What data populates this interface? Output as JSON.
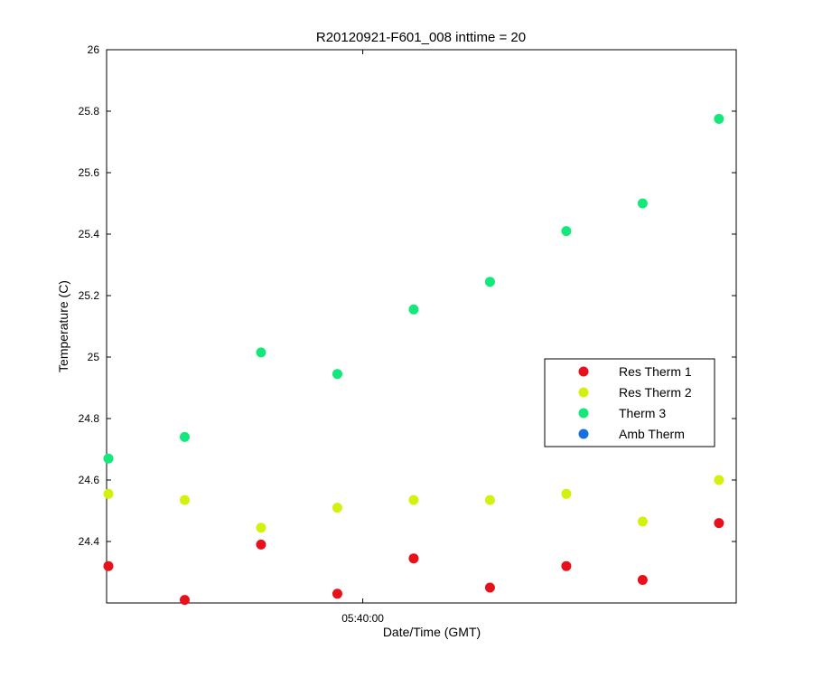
{
  "chart_data": {
    "type": "scatter",
    "title": "R20120921-F601_008 inttime = 20",
    "xlabel": "Date/Time (GMT)",
    "ylabel": "Temperature (C)",
    "x_tick_labels": [
      "05:40:00"
    ],
    "x_tick_index": 3.333,
    "xlim": [
      0,
      8.25
    ],
    "ylim": [
      24.2,
      26
    ],
    "y_ticks": [
      24.4,
      24.6,
      24.8,
      25,
      25.2,
      25.4,
      25.6,
      25.8,
      26
    ],
    "grid": false,
    "legend_position": "right",
    "series": [
      {
        "name": "Res Therm 1",
        "color": "#e8101a",
        "x": [
          0,
          1,
          2,
          3,
          4,
          5,
          6,
          7,
          8
        ],
        "values": [
          24.32,
          24.21,
          24.39,
          24.23,
          24.345,
          24.25,
          24.32,
          24.275,
          24.46
        ]
      },
      {
        "name": "Res Therm 2",
        "color": "#d4f00f",
        "x": [
          0,
          1,
          2,
          3,
          4,
          5,
          6,
          7,
          8
        ],
        "values": [
          24.555,
          24.535,
          24.445,
          24.51,
          24.535,
          24.535,
          24.555,
          24.465,
          24.6
        ]
      },
      {
        "name": "Therm 3",
        "color": "#14e87a",
        "x": [
          0,
          1,
          2,
          3,
          4,
          5,
          6,
          7,
          8
        ],
        "values": [
          24.67,
          24.74,
          25.015,
          24.945,
          25.155,
          25.245,
          25.41,
          25.5,
          25.775
        ]
      },
      {
        "name": "Amb Therm",
        "color": "#1a6fe0",
        "x": [],
        "values": []
      }
    ]
  }
}
